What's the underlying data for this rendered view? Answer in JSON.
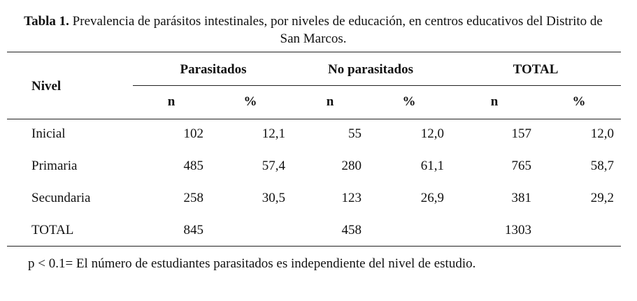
{
  "caption": {
    "label": "Tabla 1.",
    "text": "Prevalencia de parásitos intestinales, por niveles de educación, en centros educativos del Distrito de San Marcos."
  },
  "table": {
    "row_header": "Nivel",
    "groups": [
      "Parasitados",
      "No parasitados",
      "TOTAL"
    ],
    "subheaders": [
      "n",
      "%",
      "n",
      "%",
      "n",
      "%"
    ],
    "rows": [
      [
        "Inicial",
        "102",
        "12,1",
        "55",
        "12,0",
        "157",
        "12,0"
      ],
      [
        "Primaria",
        "485",
        "57,4",
        "280",
        "61,1",
        "765",
        "58,7"
      ],
      [
        "Secundaria",
        "258",
        "30,5",
        "123",
        "26,9",
        "381",
        "29,2"
      ],
      [
        "TOTAL",
        "845",
        null,
        "458",
        null,
        "1303",
        null
      ]
    ]
  },
  "footnote": "p < 0.1= El número de estudiantes parasitados es independiente del nivel de estudio."
}
